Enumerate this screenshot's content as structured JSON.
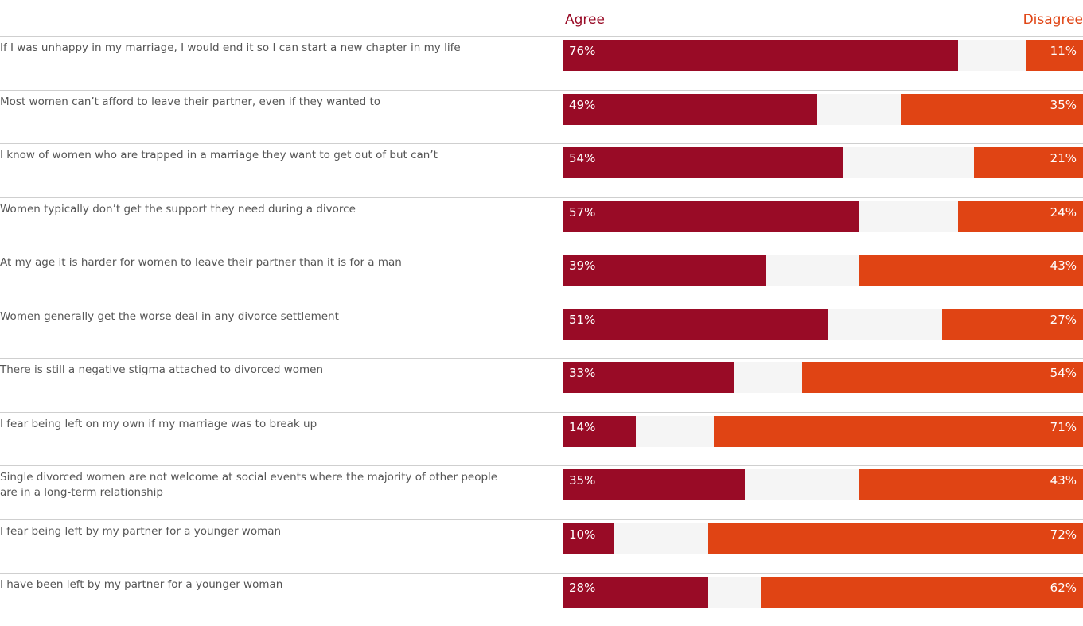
{
  "colors": {
    "agree": "#990b26",
    "disagree": "#e04414",
    "track": "#f5f5f5",
    "statement_text": "#555555",
    "divider": "#cfcfcf"
  },
  "chart_data": {
    "type": "bar",
    "orientation": "horizontal-diverging",
    "series": [
      {
        "name": "Agree",
        "values": [
          76,
          49,
          54,
          57,
          39,
          51,
          33,
          14,
          35,
          10,
          28
        ]
      },
      {
        "name": "Disagree",
        "values": [
          11,
          35,
          21,
          24,
          43,
          27,
          54,
          71,
          43,
          72,
          62
        ]
      }
    ],
    "categories": [
      " If I was unhappy in my marriage, I would end it so I can start a new chapter in my life",
      "Most women can’t afford to leave their partner, even if they wanted to",
      "I know of women who are trapped in a marriage they want to get out of but can’t",
      "Women typically don’t get the support they need during a divorce",
      "At my age it is harder for women to leave their partner than it is for a man",
      "Women generally get the worse deal in any divorce settlement",
      "There is still a negative stigma attached to divorced women",
      "I fear being left on my own if my marriage was to break up",
      "Single divorced women are not welcome at social events where the majority of other people are in a long-term relationship",
      "I fear being left by my partner for a younger woman",
      "I have been left by my partner for a younger woman"
    ],
    "value_suffix": "%",
    "xlim": [
      0,
      100
    ],
    "legend": "top",
    "grid": false
  }
}
